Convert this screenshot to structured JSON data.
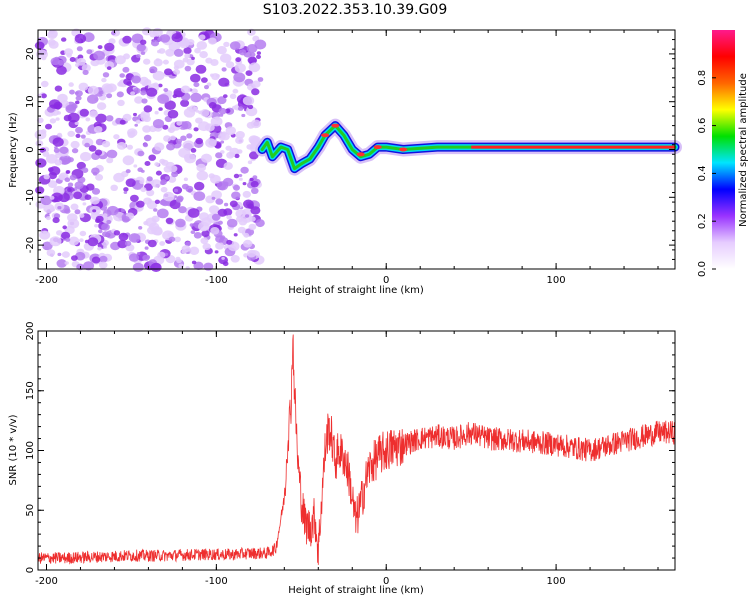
{
  "title": "S103.2022.353.10.39.G09",
  "chart_data": [
    {
      "type": "heatmap",
      "xlabel": "Height of straight line (km)",
      "ylabel": "Frequency (Hz)",
      "xlim": [
        -205,
        170
      ],
      "ylim": [
        -25,
        25
      ],
      "xticks": [
        -200,
        -100,
        0,
        100
      ],
      "yticks": [
        -20,
        -10,
        0,
        10,
        20
      ],
      "colorbar": {
        "label": "Normalized spectral amplitude",
        "range": [
          0,
          1
        ],
        "ticks": [
          0.0,
          0.2,
          0.4,
          0.6,
          0.8
        ],
        "colormap": [
          "#ffffff",
          "#e6ccff",
          "#9933ff",
          "#0000ff",
          "#00e5ff",
          "#00e000",
          "#ffff00",
          "#ff6600",
          "#ff0000",
          "#ff1a8c"
        ]
      },
      "noise_region_x": [
        -205,
        -73
      ],
      "ridge": [
        {
          "x": -73,
          "y": 0
        },
        {
          "x": -70,
          "y": 1.5
        },
        {
          "x": -67,
          "y": -1.5
        },
        {
          "x": -62,
          "y": 0.5
        },
        {
          "x": -58,
          "y": 0
        },
        {
          "x": -54,
          "y": -4
        },
        {
          "x": -50,
          "y": -3
        },
        {
          "x": -45,
          "y": -2
        },
        {
          "x": -40,
          "y": 0.5
        },
        {
          "x": -36,
          "y": 3
        },
        {
          "x": -30,
          "y": 5
        },
        {
          "x": -25,
          "y": 3
        },
        {
          "x": -20,
          "y": 0
        },
        {
          "x": -15,
          "y": -1.5
        },
        {
          "x": -10,
          "y": -1
        },
        {
          "x": -5,
          "y": 0.5
        },
        {
          "x": 0,
          "y": 0.5
        },
        {
          "x": 10,
          "y": 0
        },
        {
          "x": 30,
          "y": 0.5
        },
        {
          "x": 50,
          "y": 0.5
        },
        {
          "x": 80,
          "y": 0.5
        },
        {
          "x": 120,
          "y": 0.5
        },
        {
          "x": 170,
          "y": 0.5
        }
      ]
    },
    {
      "type": "line",
      "xlabel": "Height of straight line (km)",
      "ylabel": "SNR (10 * v/v)",
      "xlim": [
        -205,
        170
      ],
      "ylim": [
        0,
        200
      ],
      "xticks": [
        -200,
        -100,
        0,
        100
      ],
      "yticks": [
        0,
        50,
        100,
        150,
        200
      ],
      "series": [
        {
          "color": "#ee2e2e",
          "x": [
            -205,
            -190,
            -170,
            -150,
            -130,
            -110,
            -90,
            -80,
            -70,
            -65,
            -60,
            -58,
            -56,
            -55,
            -54,
            -52,
            -50,
            -48,
            -45,
            -42,
            -40,
            -38,
            -36,
            -34,
            -32,
            -30,
            -28,
            -25,
            -22,
            -20,
            -18,
            -15,
            -12,
            -10,
            -5,
            0,
            10,
            20,
            30,
            40,
            50,
            60,
            80,
            100,
            120,
            140,
            160,
            170
          ],
          "y": [
            10,
            10,
            11,
            12,
            12,
            13,
            13,
            14,
            14,
            18,
            60,
            110,
            140,
            195,
            150,
            90,
            60,
            40,
            35,
            45,
            15,
            60,
            100,
            120,
            110,
            90,
            100,
            95,
            80,
            60,
            40,
            55,
            75,
            85,
            95,
            100,
            105,
            110,
            112,
            110,
            115,
            110,
            108,
            105,
            100,
            108,
            115,
            115
          ]
        }
      ]
    }
  ]
}
